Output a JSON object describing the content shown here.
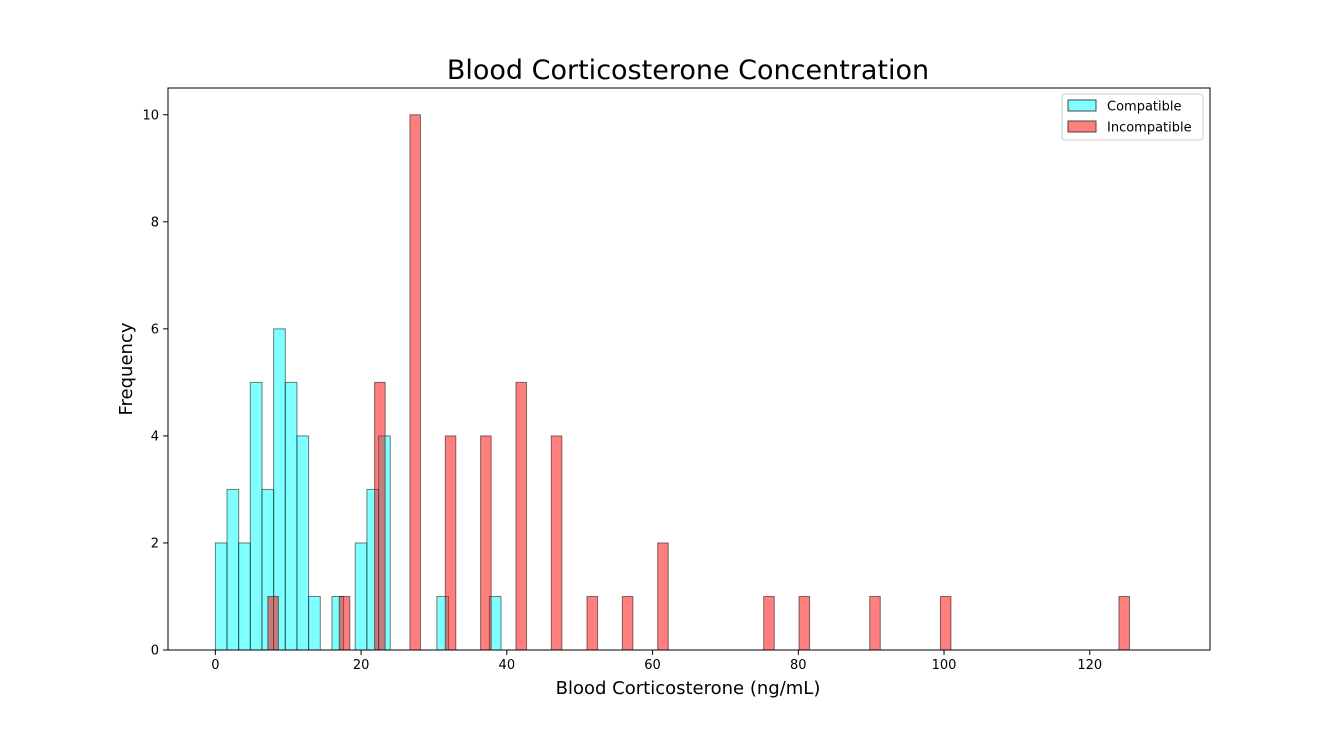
{
  "chart_data": {
    "type": "bar",
    "title": "Blood Corticosterone Concentration",
    "xlabel": "Blood Corticosterone (ng/mL)",
    "ylabel": "Frequency",
    "xlim": [
      -6.5,
      136.5
    ],
    "ylim": [
      0,
      10.5
    ],
    "xticks": [
      0,
      20,
      40,
      60,
      80,
      100,
      120
    ],
    "yticks": [
      0,
      2,
      4,
      6,
      8,
      10
    ],
    "legend_position": "top-right",
    "grid": false,
    "series": [
      {
        "name": "Compatible",
        "color": "#00FFFF",
        "bin_width": 1.6,
        "bins": [
          {
            "x": 0,
            "count": 2
          },
          {
            "x": 1.6,
            "count": 3
          },
          {
            "x": 3.2,
            "count": 2
          },
          {
            "x": 4.8,
            "count": 5
          },
          {
            "x": 6.4,
            "count": 3
          },
          {
            "x": 8.0,
            "count": 6
          },
          {
            "x": 9.6,
            "count": 5
          },
          {
            "x": 11.2,
            "count": 4
          },
          {
            "x": 12.8,
            "count": 1
          },
          {
            "x": 16.0,
            "count": 1
          },
          {
            "x": 19.2,
            "count": 2
          },
          {
            "x": 20.8,
            "count": 3
          },
          {
            "x": 22.4,
            "count": 4
          },
          {
            "x": 30.4,
            "count": 1
          },
          {
            "x": 37.6,
            "count": 1
          }
        ]
      },
      {
        "name": "Incompatible",
        "color": "#FF0000",
        "bin_width": 1.45,
        "bins": [
          {
            "x": 7.2,
            "count": 1
          },
          {
            "x": 17.0,
            "count": 1
          },
          {
            "x": 21.85,
            "count": 5
          },
          {
            "x": 26.7,
            "count": 10
          },
          {
            "x": 31.55,
            "count": 4
          },
          {
            "x": 36.4,
            "count": 4
          },
          {
            "x": 41.25,
            "count": 5
          },
          {
            "x": 46.1,
            "count": 4
          },
          {
            "x": 51.0,
            "count": 1
          },
          {
            "x": 55.85,
            "count": 1
          },
          {
            "x": 60.7,
            "count": 2
          },
          {
            "x": 65.55,
            "count": 0
          },
          {
            "x": 70.4,
            "count": 0
          },
          {
            "x": 75.25,
            "count": 1
          },
          {
            "x": 80.1,
            "count": 1
          },
          {
            "x": 84.95,
            "count": 0
          },
          {
            "x": 89.8,
            "count": 1
          },
          {
            "x": 94.65,
            "count": 0
          },
          {
            "x": 99.5,
            "count": 1
          },
          {
            "x": 104.35,
            "count": 0
          },
          {
            "x": 109.2,
            "count": 0
          },
          {
            "x": 114.05,
            "count": 0
          },
          {
            "x": 118.9,
            "count": 0
          },
          {
            "x": 124.0,
            "count": 1
          },
          {
            "x": 128.6,
            "count": 0
          }
        ]
      }
    ]
  }
}
